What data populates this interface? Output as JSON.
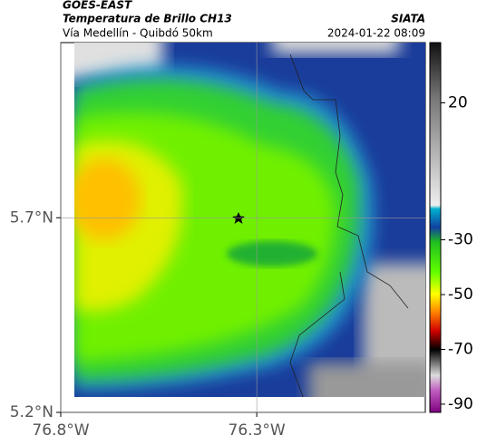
{
  "header": {
    "title": "GOES-EAST",
    "subtitle": "Temperatura de Brillo CH13",
    "caption": "Vía Medellín - Quibdó 50km",
    "source": "SIATA",
    "timestamp": "2024-01-22 08:09"
  },
  "map": {
    "xlim": [
      -76.8,
      -75.87
    ],
    "ylim": [
      5.2,
      6.15
    ],
    "xticks": [
      {
        "value": -76.8,
        "label": "76.8°W"
      },
      {
        "value": -76.3,
        "label": "76.3°W"
      }
    ],
    "yticks": [
      {
        "value": 5.7,
        "label": "5.7°N"
      },
      {
        "value": 5.2,
        "label": "5.2°N"
      }
    ]
  },
  "colorbar": {
    "lim": [
      -93,
      42
    ],
    "ticks": [
      20,
      -30,
      -50,
      -70,
      -90
    ]
  }
}
